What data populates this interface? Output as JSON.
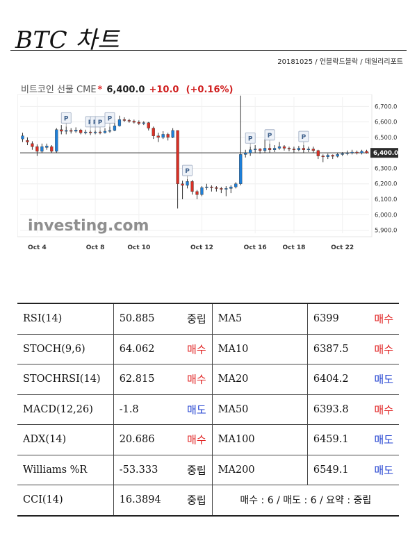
{
  "header": {
    "title": "BTC 차트",
    "byline": "20181025 / 언블락드블락 / 데일리리포트"
  },
  "chart_head": {
    "name": "비트코인 선물 CME",
    "star": "*",
    "price": "6,400.0",
    "change": "+10.0",
    "change_pct": "(+0.16%)"
  },
  "chart_data": {
    "type": "candlestick",
    "title": "비트코인 선물 CME",
    "x_tick_labels": [
      "Oct 4",
      "Oct 8",
      "Oct 10",
      "Oct 12",
      "Oct 16",
      "Oct 18",
      "Oct 22"
    ],
    "y_tick_labels": [
      "6,700.0",
      "6,600.0",
      "6,500.0",
      "6,400.0",
      "6,300.0",
      "6,200.0",
      "6,100.0",
      "6,000.0",
      "5,900.0"
    ],
    "y_ticks": [
      6700,
      6600,
      6500,
      6400,
      6300,
      6200,
      6100,
      6000,
      5900
    ],
    "ylim": [
      5880,
      6760
    ],
    "last_price": 6400,
    "last_price_label": "6,400.0",
    "annotation_label": "P",
    "annotations_idx": [
      9,
      14,
      15,
      16,
      18,
      34,
      47,
      51,
      58
    ],
    "x_tick_idx": [
      3,
      15,
      24,
      37,
      48,
      56,
      66
    ],
    "watermark": "investing.com",
    "up_color": "#1e7fd8",
    "down_color": "#d93025",
    "candles": [
      {
        "o": 6490,
        "c": 6510,
        "h": 6530,
        "l": 6470
      },
      {
        "o": 6480,
        "c": 6470,
        "h": 6500,
        "l": 6450
      },
      {
        "o": 6460,
        "c": 6440,
        "h": 6475,
        "l": 6420
      },
      {
        "o": 6440,
        "c": 6410,
        "h": 6455,
        "l": 6380
      },
      {
        "o": 6410,
        "c": 6440,
        "h": 6460,
        "l": 6400
      },
      {
        "o": 6435,
        "c": 6445,
        "h": 6460,
        "l": 6420
      },
      {
        "o": 6440,
        "c": 6410,
        "h": 6450,
        "l": 6400
      },
      {
        "o": 6410,
        "c": 6550,
        "h": 6560,
        "l": 6400
      },
      {
        "o": 6550,
        "c": 6540,
        "h": 6580,
        "l": 6520
      },
      {
        "o": 6540,
        "c": 6545,
        "h": 6570,
        "l": 6520
      },
      {
        "o": 6545,
        "c": 6540,
        "h": 6560,
        "l": 6525
      },
      {
        "o": 6540,
        "c": 6548,
        "h": 6565,
        "l": 6530
      },
      {
        "o": 6548,
        "c": 6530,
        "h": 6555,
        "l": 6520
      },
      {
        "o": 6530,
        "c": 6535,
        "h": 6550,
        "l": 6520
      },
      {
        "o": 6535,
        "c": 6530,
        "h": 6545,
        "l": 6515
      },
      {
        "o": 6530,
        "c": 6535,
        "h": 6545,
        "l": 6520
      },
      {
        "o": 6535,
        "c": 6530,
        "h": 6545,
        "l": 6520
      },
      {
        "o": 6530,
        "c": 6540,
        "h": 6560,
        "l": 6525
      },
      {
        "o": 6540,
        "c": 6545,
        "h": 6570,
        "l": 6530
      },
      {
        "o": 6545,
        "c": 6575,
        "h": 6620,
        "l": 6540
      },
      {
        "o": 6575,
        "c": 6615,
        "h": 6640,
        "l": 6570
      },
      {
        "o": 6615,
        "c": 6610,
        "h": 6630,
        "l": 6600
      },
      {
        "o": 6610,
        "c": 6605,
        "h": 6620,
        "l": 6595
      },
      {
        "o": 6605,
        "c": 6598,
        "h": 6615,
        "l": 6590
      },
      {
        "o": 6598,
        "c": 6590,
        "h": 6610,
        "l": 6580
      },
      {
        "o": 6590,
        "c": 6595,
        "h": 6605,
        "l": 6580
      },
      {
        "o": 6595,
        "c": 6560,
        "h": 6600,
        "l": 6545
      },
      {
        "o": 6560,
        "c": 6510,
        "h": 6570,
        "l": 6490
      },
      {
        "o": 6510,
        "c": 6500,
        "h": 6530,
        "l": 6470
      },
      {
        "o": 6500,
        "c": 6520,
        "h": 6540,
        "l": 6490
      },
      {
        "o": 6520,
        "c": 6500,
        "h": 6530,
        "l": 6480
      },
      {
        "o": 6500,
        "c": 6545,
        "h": 6560,
        "l": 6495
      },
      {
        "o": 6545,
        "c": 6200,
        "h": 6545,
        "l": 6040
      },
      {
        "o": 6200,
        "c": 6190,
        "h": 6220,
        "l": 6100
      },
      {
        "o": 6190,
        "c": 6215,
        "h": 6230,
        "l": 6170
      },
      {
        "o": 6215,
        "c": 6150,
        "h": 6225,
        "l": 6130
      },
      {
        "o": 6150,
        "c": 6130,
        "h": 6160,
        "l": 6100
      },
      {
        "o": 6130,
        "c": 6175,
        "h": 6185,
        "l": 6120
      },
      {
        "o": 6175,
        "c": 6180,
        "h": 6200,
        "l": 6160
      },
      {
        "o": 6180,
        "c": 6175,
        "h": 6190,
        "l": 6150
      },
      {
        "o": 6175,
        "c": 6170,
        "h": 6185,
        "l": 6150
      },
      {
        "o": 6170,
        "c": 6165,
        "h": 6180,
        "l": 6140
      },
      {
        "o": 6165,
        "c": 6170,
        "h": 6185,
        "l": 6120
      },
      {
        "o": 6170,
        "c": 6180,
        "h": 6190,
        "l": 6140
      },
      {
        "o": 6180,
        "c": 6200,
        "h": 6210,
        "l": 6170
      },
      {
        "o": 6200,
        "c": 6390,
        "h": 6770,
        "l": 6190
      },
      {
        "o": 6390,
        "c": 6400,
        "h": 6420,
        "l": 6370
      },
      {
        "o": 6400,
        "c": 6420,
        "h": 6440,
        "l": 6380
      },
      {
        "o": 6420,
        "c": 6425,
        "h": 6450,
        "l": 6400
      },
      {
        "o": 6425,
        "c": 6415,
        "h": 6430,
        "l": 6395
      },
      {
        "o": 6415,
        "c": 6430,
        "h": 6490,
        "l": 6400
      },
      {
        "o": 6430,
        "c": 6420,
        "h": 6460,
        "l": 6400
      },
      {
        "o": 6420,
        "c": 6430,
        "h": 6450,
        "l": 6405
      },
      {
        "o": 6430,
        "c": 6440,
        "h": 6470,
        "l": 6420
      },
      {
        "o": 6440,
        "c": 6430,
        "h": 6450,
        "l": 6415
      },
      {
        "o": 6430,
        "c": 6425,
        "h": 6440,
        "l": 6410
      },
      {
        "o": 6425,
        "c": 6420,
        "h": 6440,
        "l": 6400
      },
      {
        "o": 6420,
        "c": 6430,
        "h": 6445,
        "l": 6410
      },
      {
        "o": 6430,
        "c": 6420,
        "h": 6450,
        "l": 6400
      },
      {
        "o": 6420,
        "c": 6425,
        "h": 6440,
        "l": 6405
      },
      {
        "o": 6425,
        "c": 6415,
        "h": 6440,
        "l": 6400
      },
      {
        "o": 6415,
        "c": 6380,
        "h": 6420,
        "l": 6360
      },
      {
        "o": 6380,
        "c": 6375,
        "h": 6390,
        "l": 6340
      },
      {
        "o": 6375,
        "c": 6385,
        "h": 6395,
        "l": 6360
      },
      {
        "o": 6385,
        "c": 6378,
        "h": 6390,
        "l": 6360
      },
      {
        "o": 6378,
        "c": 6390,
        "h": 6400,
        "l": 6370
      },
      {
        "o": 6390,
        "c": 6395,
        "h": 6405,
        "l": 6380
      },
      {
        "o": 6395,
        "c": 6400,
        "h": 6415,
        "l": 6385
      },
      {
        "o": 6400,
        "c": 6405,
        "h": 6420,
        "l": 6390
      },
      {
        "o": 6405,
        "c": 6400,
        "h": 6415,
        "l": 6390
      },
      {
        "o": 6400,
        "c": 6410,
        "h": 6420,
        "l": 6390
      },
      {
        "o": 6410,
        "c": 6400,
        "h": 6420,
        "l": 6395
      }
    ]
  },
  "indicators": [
    {
      "name": "RSI(14)",
      "value": "50.885",
      "signal": "중립",
      "type": "neutral",
      "ma_name": "MA5",
      "ma_value": "6399",
      "ma_signal": "매수",
      "ma_type": "buy"
    },
    {
      "name": "STOCH(9,6)",
      "value": "64.062",
      "signal": "매수",
      "type": "buy",
      "ma_name": "MA10",
      "ma_value": "6387.5",
      "ma_signal": "매수",
      "ma_type": "buy"
    },
    {
      "name": "STOCHRSI(14)",
      "value": "62.815",
      "signal": "매수",
      "type": "buy",
      "ma_name": "MA20",
      "ma_value": "6404.2",
      "ma_signal": "매도",
      "ma_type": "sell"
    },
    {
      "name": "MACD(12,26)",
      "value": "-1.8",
      "signal": "매도",
      "type": "sell",
      "ma_name": "MA50",
      "ma_value": "6393.8",
      "ma_signal": "매수",
      "ma_type": "buy"
    },
    {
      "name": "ADX(14)",
      "value": "20.686",
      "signal": "매수",
      "type": "buy",
      "ma_name": "MA100",
      "ma_value": "6459.1",
      "ma_signal": "매도",
      "ma_type": "sell"
    },
    {
      "name": "Williams %R",
      "value": "-53.333",
      "signal": "중립",
      "type": "neutral",
      "ma_name": "MA200",
      "ma_value": "6549.1",
      "ma_signal": "매도",
      "ma_type": "sell"
    }
  ],
  "last_row": {
    "name": "CCI(14)",
    "value": "16.3894",
    "signal": "중립",
    "type": "neutral",
    "summary": "매수 : 6 / 매도 : 6 / 요약 : 중립"
  },
  "colors": {
    "buy": "#e02020",
    "sell": "#1f3fd0",
    "neutral": "#111111"
  }
}
